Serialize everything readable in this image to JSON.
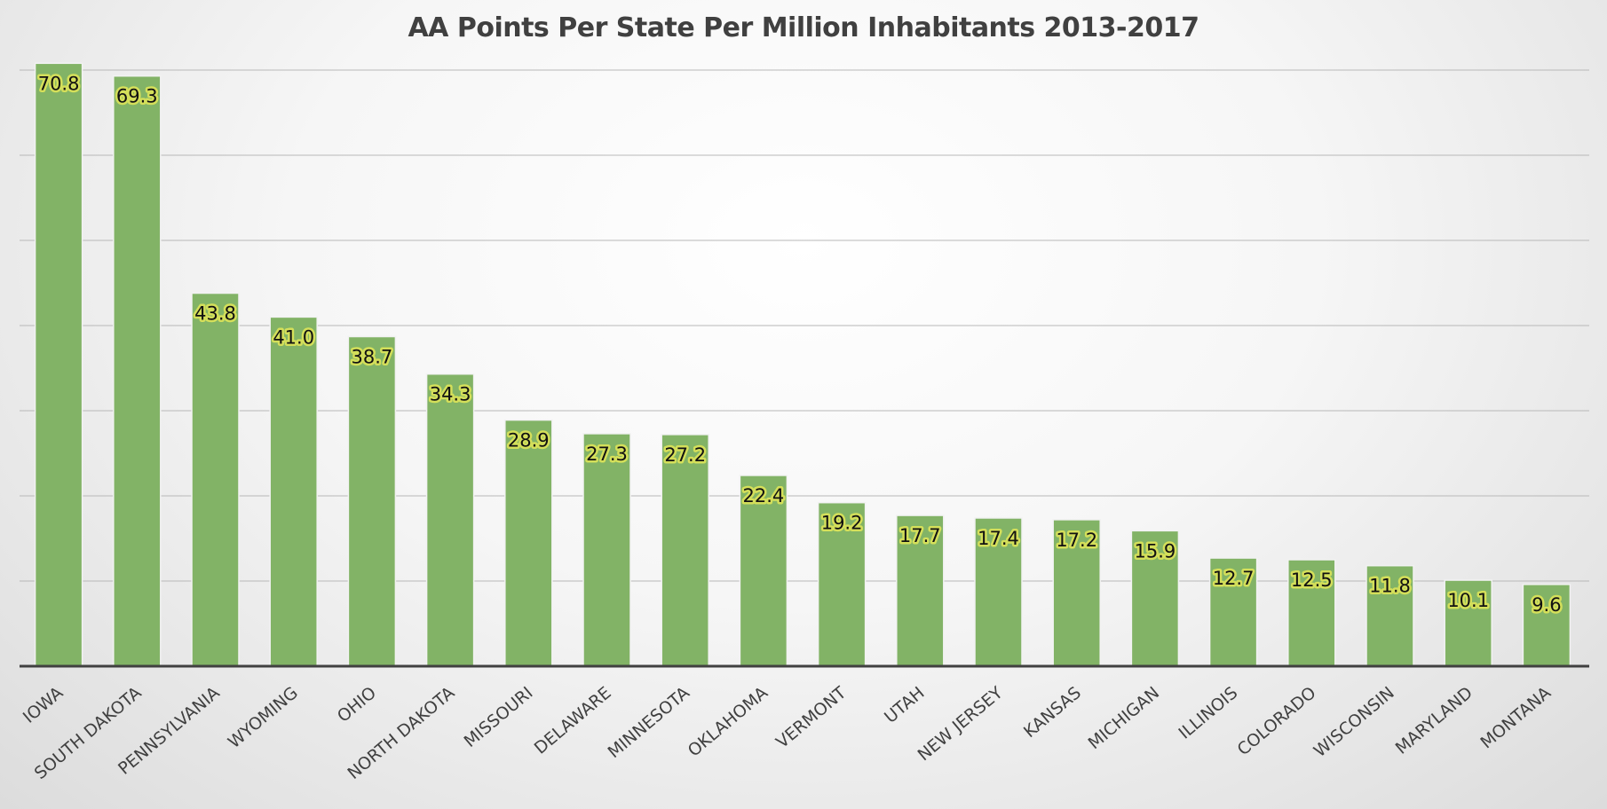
{
  "chart_data": {
    "type": "bar",
    "title": "AA Points Per State Per Million Inhabitants 2013-2017",
    "xlabel": "",
    "ylabel": "",
    "ylim": [
      0,
      70
    ],
    "grid": true,
    "colors": {
      "bar": "#82b366",
      "label_highlight": "#d4df5a",
      "axis": "#404040"
    },
    "categories": [
      "IOWA",
      "SOUTH DAKOTA",
      "PENNSYLVANIA",
      "WYOMING",
      "OHIO",
      "NORTH DAKOTA",
      "MISSOURI",
      "DELAWARE",
      "MINNESOTA",
      "OKLAHOMA",
      "VERMONT",
      "UTAH",
      "NEW JERSEY",
      "KANSAS",
      "MICHIGAN",
      "ILLINOIS",
      "COLORADO",
      "WISCONSIN",
      "MARYLAND",
      "MONTANA"
    ],
    "values": [
      70.8,
      69.3,
      43.8,
      41.0,
      38.7,
      34.3,
      28.9,
      27.3,
      27.2,
      22.4,
      19.2,
      17.7,
      17.4,
      17.2,
      15.9,
      12.7,
      12.5,
      11.8,
      10.1,
      9.6
    ]
  }
}
